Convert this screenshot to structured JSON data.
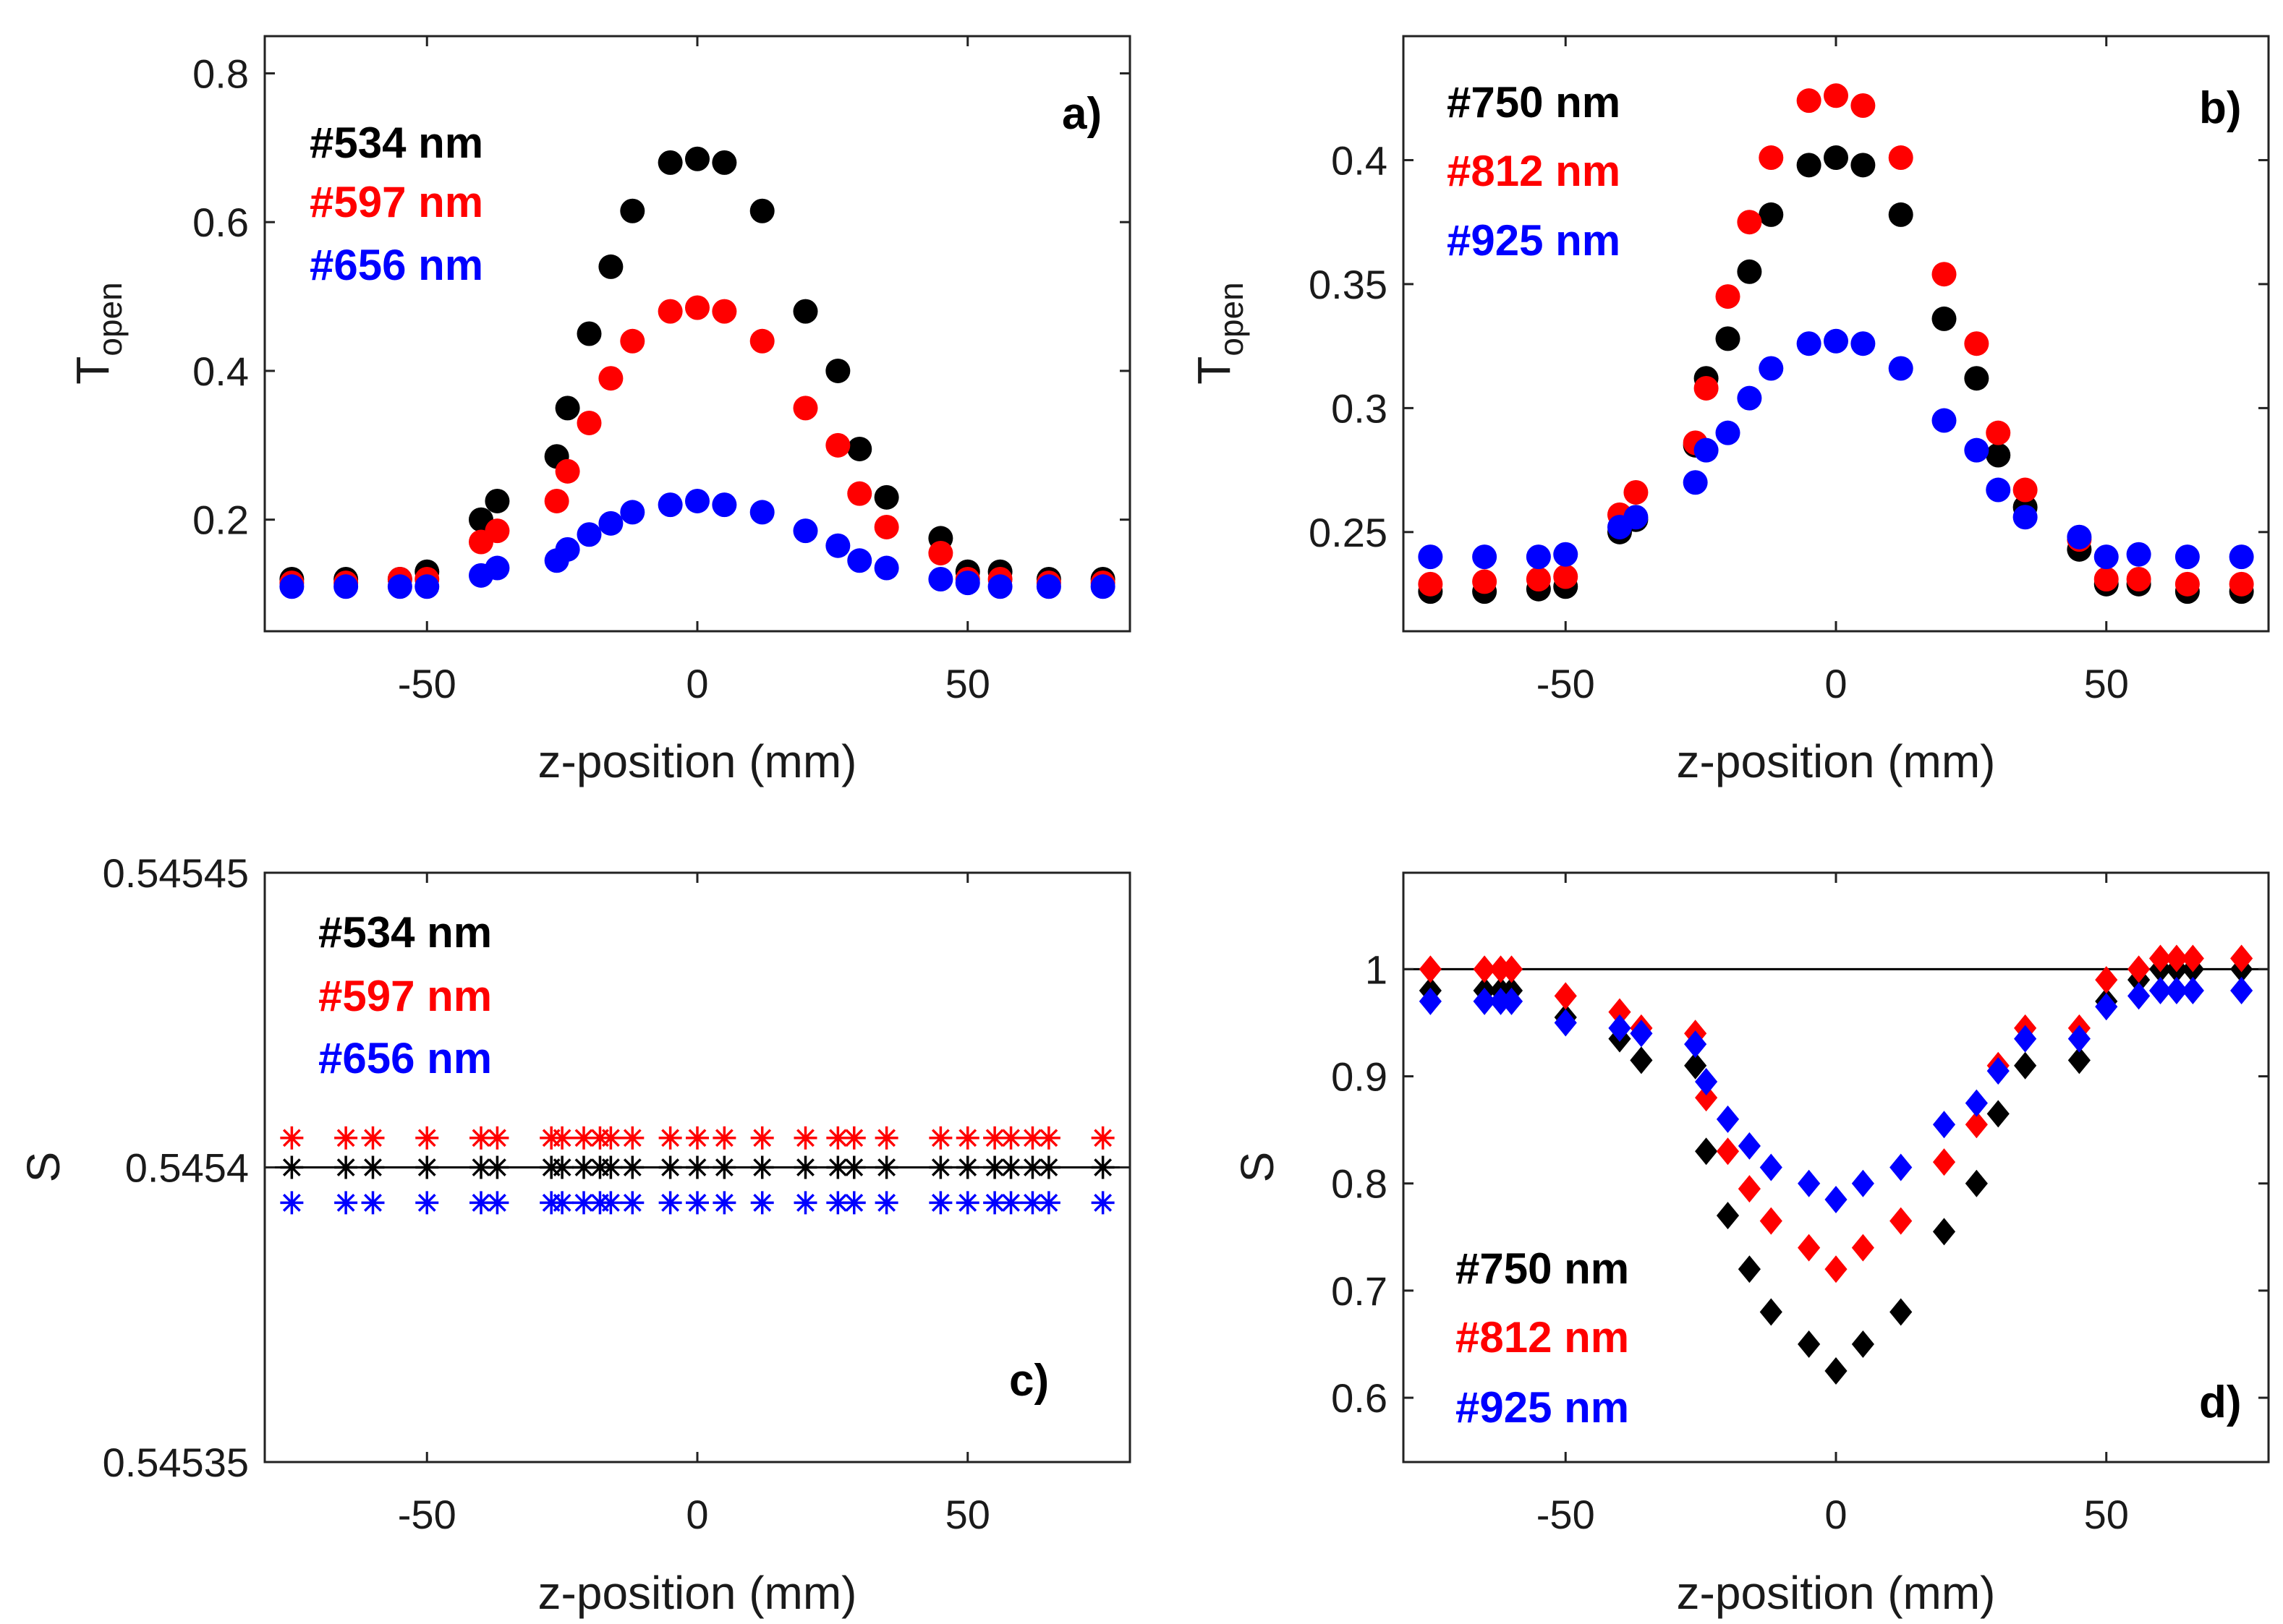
{
  "chart_data": [
    {
      "id": "a",
      "type": "scatter",
      "marker": "circle",
      "panel_label": "a)",
      "xlabel": "z-position (mm)",
      "ylabel": "T",
      "ylabel_sub": "open",
      "xlim": [
        -80,
        80
      ],
      "ylim": [
        0.05,
        0.85
      ],
      "xticks": [
        -50,
        0,
        50
      ],
      "yticks": [
        0.2,
        0.4,
        0.6,
        0.8
      ],
      "ytick_labels": [
        "0.2",
        "0.4",
        "0.6",
        "0.8"
      ],
      "legend_position": "top-left",
      "x": [
        -75,
        -65,
        -55,
        -50,
        -40,
        -37,
        -26,
        -24,
        -20,
        -16,
        -12,
        -5,
        0,
        5,
        12,
        20,
        26,
        30,
        35,
        45,
        50,
        56,
        65,
        75
      ],
      "series": [
        {
          "name": "#534 nm",
          "color": "#000000",
          "values": [
            0.12,
            0.12,
            0.12,
            0.13,
            0.2,
            0.225,
            0.285,
            0.35,
            0.45,
            0.54,
            0.615,
            0.68,
            0.685,
            0.68,
            0.615,
            0.48,
            0.4,
            0.295,
            0.23,
            0.175,
            0.13,
            0.13,
            0.12,
            0.12
          ]
        },
        {
          "name": "#597 nm",
          "color": "#ff0000",
          "values": [
            0.115,
            0.115,
            0.12,
            0.12,
            0.17,
            0.185,
            0.225,
            0.265,
            0.33,
            0.39,
            0.44,
            0.48,
            0.485,
            0.48,
            0.44,
            0.35,
            0.3,
            0.235,
            0.19,
            0.155,
            0.12,
            0.12,
            0.115,
            0.115
          ]
        },
        {
          "name": "#656 nm",
          "color": "#0000ff",
          "values": [
            0.11,
            0.11,
            0.11,
            0.11,
            0.125,
            0.135,
            0.145,
            0.16,
            0.18,
            0.195,
            0.21,
            0.22,
            0.225,
            0.22,
            0.21,
            0.185,
            0.165,
            0.145,
            0.135,
            0.12,
            0.115,
            0.11,
            0.11,
            0.11
          ]
        }
      ]
    },
    {
      "id": "b",
      "type": "scatter",
      "marker": "circle",
      "panel_label": "b)",
      "xlabel": "z-position (mm)",
      "ylabel": "T",
      "ylabel_sub": "open",
      "xlim": [
        -80,
        80
      ],
      "ylim": [
        0.21,
        0.45
      ],
      "xticks": [
        -50,
        0,
        50
      ],
      "yticks": [
        0.25,
        0.3,
        0.35,
        0.4
      ],
      "ytick_labels": [
        "0.25",
        "0.3",
        "0.35",
        "0.4"
      ],
      "legend_position": "top-left",
      "x": [
        -75,
        -65,
        -55,
        -50,
        -40,
        -37,
        -26,
        -24,
        -20,
        -16,
        -12,
        -5,
        0,
        5,
        12,
        20,
        26,
        30,
        35,
        45,
        50,
        56,
        65,
        75
      ],
      "series": [
        {
          "name": "#750 nm",
          "color": "#000000",
          "values": [
            0.226,
            0.226,
            0.227,
            0.228,
            0.25,
            0.255,
            0.285,
            0.312,
            0.328,
            0.355,
            0.378,
            0.398,
            0.401,
            0.398,
            0.378,
            0.336,
            0.312,
            0.281,
            0.26,
            0.243,
            0.229,
            0.229,
            0.226,
            0.226
          ]
        },
        {
          "name": "#812 nm",
          "color": "#ff0000",
          "values": [
            0.229,
            0.23,
            0.231,
            0.232,
            0.257,
            0.266,
            0.286,
            0.308,
            0.345,
            0.375,
            0.401,
            0.424,
            0.426,
            0.422,
            0.401,
            0.354,
            0.326,
            0.29,
            0.267,
            0.247,
            0.231,
            0.231,
            0.229,
            0.229
          ]
        },
        {
          "name": "#925 nm",
          "color": "#0000ff",
          "values": [
            0.24,
            0.24,
            0.24,
            0.241,
            0.252,
            0.256,
            0.27,
            0.283,
            0.29,
            0.304,
            0.316,
            0.326,
            0.327,
            0.326,
            0.316,
            0.295,
            0.283,
            0.267,
            0.256,
            0.248,
            0.24,
            0.241,
            0.24,
            0.24
          ]
        }
      ]
    },
    {
      "id": "c",
      "type": "scatter",
      "marker": "asterisk",
      "panel_label": "c)",
      "xlabel": "z-position (mm)",
      "ylabel": "S",
      "xlim": [
        -80,
        80
      ],
      "ylim": [
        0.54535,
        0.54545
      ],
      "xticks": [
        -50,
        0,
        50
      ],
      "yticks": [
        0.54535,
        0.5454,
        0.54545
      ],
      "ytick_labels": [
        "0.54535",
        "0.5454",
        "0.54545"
      ],
      "legend_position": "top-left",
      "reference_line": 0.5454,
      "x": [
        -75,
        -65,
        -60,
        -50,
        -40,
        -37,
        -27,
        -25,
        -21,
        -18,
        -16,
        -12,
        -5,
        0,
        5,
        12,
        20,
        26,
        29,
        35,
        45,
        50,
        55,
        58,
        62,
        65,
        75
      ],
      "series": [
        {
          "name": "#534 nm",
          "color": "#000000",
          "values": [
            0.5454,
            0.5454,
            0.5454,
            0.5454,
            0.5454,
            0.5454,
            0.5454,
            0.5454,
            0.5454,
            0.5454,
            0.5454,
            0.5454,
            0.5454,
            0.5454,
            0.5454,
            0.5454,
            0.5454,
            0.5454,
            0.5454,
            0.5454,
            0.5454,
            0.5454,
            0.5454,
            0.5454,
            0.5454,
            0.5454,
            0.5454
          ]
        },
        {
          "name": "#597 nm",
          "color": "#ff0000",
          "values": [
            0.545405,
            0.545405,
            0.545405,
            0.545405,
            0.545405,
            0.545405,
            0.545405,
            0.545405,
            0.545405,
            0.545405,
            0.545405,
            0.545405,
            0.545405,
            0.545405,
            0.545405,
            0.545405,
            0.545405,
            0.545405,
            0.545405,
            0.545405,
            0.545405,
            0.545405,
            0.545405,
            0.545405,
            0.545405,
            0.545405,
            0.545405
          ]
        },
        {
          "name": "#656 nm",
          "color": "#0000ff",
          "values": [
            0.545394,
            0.545394,
            0.545394,
            0.545394,
            0.545394,
            0.545394,
            0.545394,
            0.545394,
            0.545394,
            0.545394,
            0.545394,
            0.545394,
            0.545394,
            0.545394,
            0.545394,
            0.545394,
            0.545394,
            0.545394,
            0.545394,
            0.545394,
            0.545394,
            0.545394,
            0.545394,
            0.545394,
            0.545394,
            0.545394,
            0.545394
          ]
        }
      ]
    },
    {
      "id": "d",
      "type": "scatter",
      "marker": "diamond",
      "panel_label": "d)",
      "xlabel": "z-position (mm)",
      "ylabel": "S",
      "xlim": [
        -80,
        80
      ],
      "ylim": [
        0.54,
        1.09
      ],
      "xticks": [
        -50,
        0,
        50
      ],
      "yticks": [
        0.6,
        0.7,
        0.8,
        0.9,
        1
      ],
      "ytick_labels": [
        "0.6",
        "0.7",
        "0.8",
        "0.9",
        "1"
      ],
      "legend_position": "bottom-left",
      "reference_line": 1,
      "x": [
        -75,
        -65,
        -62,
        -60,
        -50,
        -40,
        -36,
        -26,
        -24,
        -20,
        -16,
        -12,
        -5,
        0,
        5,
        12,
        20,
        26,
        30,
        35,
        45,
        50,
        56,
        60,
        63,
        66,
        75
      ],
      "series": [
        {
          "name": "#750 nm",
          "color": "#000000",
          "values": [
            0.98,
            0.98,
            0.98,
            0.98,
            0.955,
            0.935,
            0.915,
            0.91,
            0.83,
            0.77,
            0.72,
            0.68,
            0.65,
            0.625,
            0.65,
            0.68,
            0.755,
            0.8,
            0.865,
            0.91,
            0.915,
            0.97,
            0.99,
            1.0,
            1.0,
            1.0,
            1.0
          ]
        },
        {
          "name": "#812 nm",
          "color": "#ff0000",
          "values": [
            1.0,
            1.0,
            1.0,
            1.0,
            0.975,
            0.96,
            0.945,
            0.94,
            0.88,
            0.83,
            0.795,
            0.765,
            0.74,
            0.72,
            0.74,
            0.765,
            0.82,
            0.855,
            0.91,
            0.945,
            0.945,
            0.99,
            1.0,
            1.01,
            1.01,
            1.01,
            1.01
          ]
        },
        {
          "name": "#925 nm",
          "color": "#0000ff",
          "values": [
            0.97,
            0.97,
            0.97,
            0.97,
            0.95,
            0.945,
            0.94,
            0.93,
            0.895,
            0.86,
            0.835,
            0.815,
            0.8,
            0.785,
            0.8,
            0.815,
            0.855,
            0.875,
            0.905,
            0.935,
            0.935,
            0.965,
            0.975,
            0.98,
            0.98,
            0.98,
            0.98
          ]
        }
      ]
    }
  ]
}
